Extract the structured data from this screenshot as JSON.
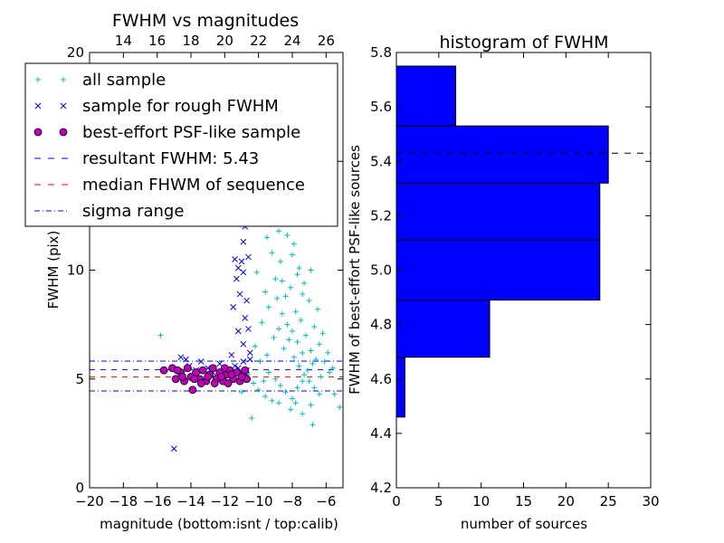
{
  "chart_data": [
    {
      "type": "scatter",
      "title": "FWHM vs magnitudes",
      "xlabel": "magnitude (bottom:isnt / top:calib)",
      "ylabel": "FWHM (pix)",
      "xlim": [
        -20,
        -5
      ],
      "ylim": [
        0,
        20
      ],
      "xticks": [
        -20,
        -18,
        -16,
        -14,
        -12,
        -10,
        -8,
        -6
      ],
      "xtick_labels": [
        "−20",
        "−18",
        "−16",
        "−14",
        "−12",
        "−10",
        "−8",
        "−6"
      ],
      "yticks": [
        0,
        5,
        10,
        15,
        20
      ],
      "ytick_labels": [
        "0",
        "5",
        "10",
        "15",
        "20"
      ],
      "top_xticks": [
        14,
        16,
        18,
        20,
        22,
        24,
        26
      ],
      "top_xtick_offset": 32,
      "legend_position": "top-left",
      "legend": [
        {
          "label": "all sample",
          "marker": "+",
          "color": "#00bfbf"
        },
        {
          "label": "sample for rough FWHM",
          "marker": "x",
          "color": "#0000ff"
        },
        {
          "label": "best-effort PSF-like sample",
          "marker": "o",
          "color": "#bf00bf"
        },
        {
          "label": "resultant FWHM: 5.43",
          "line": "dashed",
          "color": "#0000ff"
        },
        {
          "label": "median FHWM of sequence",
          "line": "dashed",
          "color": "#ff0000"
        },
        {
          "label": "sigma range",
          "line": "dashdot",
          "color": "#0000ff"
        }
      ],
      "lines": {
        "resultant_fwhm": 5.43,
        "median_fwhm": 5.1,
        "sigma_range": [
          4.45,
          5.82
        ]
      },
      "series": [
        {
          "name": "all sample",
          "marker": "+",
          "color": "#00bfbf",
          "points": [
            [
              -15.8,
              7.0
            ],
            [
              -10.4,
              3.2
            ],
            [
              -5.5,
              4.3
            ],
            [
              -5.2,
              3.7
            ],
            [
              -6.8,
              2.9
            ],
            [
              -7.4,
              3.4
            ],
            [
              -8.6,
              15.1
            ],
            [
              -8.3,
              17.5
            ],
            [
              -7.9,
              18.9
            ],
            [
              -8.2,
              19.4
            ],
            [
              -9.7,
              13.2
            ],
            [
              -9.3,
              12.1
            ],
            [
              -9.1,
              15.0
            ],
            [
              -8.9,
              14.2
            ],
            [
              -9.5,
              11.5
            ],
            [
              -10.1,
              9.9
            ],
            [
              -9.6,
              9.0
            ],
            [
              -8.8,
              11.8
            ],
            [
              -8.5,
              12.6
            ],
            [
              -8.1,
              13.0
            ],
            [
              -7.9,
              11.2
            ],
            [
              -7.6,
              10.1
            ],
            [
              -7.3,
              9.4
            ],
            [
              -7.0,
              8.6
            ],
            [
              -6.7,
              7.4
            ],
            [
              -6.4,
              6.6
            ],
            [
              -6.1,
              5.8
            ],
            [
              -5.8,
              5.3
            ],
            [
              -9.8,
              7.6
            ],
            [
              -9.4,
              8.3
            ],
            [
              -9.0,
              9.6
            ],
            [
              -8.7,
              10.4
            ],
            [
              -8.4,
              8.8
            ],
            [
              -8.1,
              9.2
            ],
            [
              -7.8,
              8.1
            ],
            [
              -7.5,
              7.7
            ],
            [
              -7.2,
              7.0
            ],
            [
              -6.9,
              6.3
            ],
            [
              -6.6,
              5.9
            ],
            [
              -6.3,
              5.1
            ],
            [
              -10.2,
              6.5
            ],
            [
              -9.9,
              5.8
            ],
            [
              -9.5,
              6.1
            ],
            [
              -9.1,
              6.9
            ],
            [
              -8.8,
              7.3
            ],
            [
              -8.5,
              6.4
            ],
            [
              -8.2,
              6.8
            ],
            [
              -7.9,
              6.0
            ],
            [
              -7.6,
              5.6
            ],
            [
              -7.3,
              5.2
            ],
            [
              -7.0,
              4.9
            ],
            [
              -6.7,
              4.6
            ],
            [
              -6.4,
              4.3
            ],
            [
              -10.6,
              5.2
            ],
            [
              -10.3,
              4.8
            ],
            [
              -10.0,
              4.5
            ],
            [
              -9.7,
              4.9
            ],
            [
              -9.4,
              5.3
            ],
            [
              -9.0,
              5.0
            ],
            [
              -8.7,
              4.7
            ],
            [
              -8.4,
              4.4
            ],
            [
              -8.0,
              4.1
            ],
            [
              -7.7,
              4.6
            ],
            [
              -7.4,
              4.9
            ],
            [
              -7.1,
              5.4
            ],
            [
              -6.8,
              5.7
            ],
            [
              -8.6,
              8.0
            ],
            [
              -8.3,
              7.5
            ],
            [
              -8.0,
              7.2
            ],
            [
              -7.7,
              6.7
            ],
            [
              -7.4,
              6.2
            ],
            [
              -8.9,
              8.7
            ],
            [
              -9.2,
              10.8
            ],
            [
              -8.0,
              10.7
            ],
            [
              -7.7,
              9.8
            ],
            [
              -7.4,
              8.9
            ],
            [
              -8.3,
              11.6
            ],
            [
              -8.6,
              9.5
            ],
            [
              -9.8,
              12.6
            ],
            [
              -9.4,
              14.6
            ],
            [
              -8.7,
              16.2
            ],
            [
              -7.6,
              14.0
            ],
            [
              -7.2,
              12.2
            ],
            [
              -6.9,
              10.0
            ],
            [
              -6.5,
              8.2
            ],
            [
              -6.2,
              7.1
            ],
            [
              -5.9,
              6.2
            ],
            [
              -5.6,
              5.5
            ],
            [
              -11.0,
              4.4
            ],
            [
              -10.8,
              5.0
            ],
            [
              -9.6,
              4.2
            ],
            [
              -9.2,
              4.0
            ],
            [
              -8.8,
              3.9
            ],
            [
              -8.1,
              3.6
            ],
            [
              -7.8,
              3.9
            ],
            [
              -6.9,
              3.8
            ]
          ]
        },
        {
          "name": "sample for rough FWHM",
          "marker": "x",
          "color": "#0000ff",
          "points": [
            [
              -15.0,
              1.8
            ],
            [
              -14.6,
              6.0
            ],
            [
              -14.3,
              5.9
            ],
            [
              -14.1,
              5.6
            ],
            [
              -13.7,
              5.4
            ],
            [
              -13.4,
              5.8
            ],
            [
              -13.0,
              5.5
            ],
            [
              -12.7,
              5.3
            ],
            [
              -12.3,
              5.7
            ],
            [
              -12.0,
              5.4
            ],
            [
              -11.7,
              5.2
            ],
            [
              -11.4,
              5.6
            ],
            [
              -11.2,
              5.5
            ],
            [
              -10.9,
              5.8
            ],
            [
              -10.7,
              5.4
            ],
            [
              -10.5,
              5.9
            ],
            [
              -10.9,
              6.6
            ],
            [
              -11.2,
              7.2
            ],
            [
              -10.8,
              7.8
            ],
            [
              -11.5,
              8.3
            ],
            [
              -11.1,
              8.9
            ],
            [
              -10.7,
              8.6
            ],
            [
              -11.3,
              9.6
            ],
            [
              -10.9,
              9.9
            ],
            [
              -11.0,
              10.4
            ],
            [
              -11.4,
              10.5
            ],
            [
              -10.6,
              10.6
            ],
            [
              -10.9,
              11.3
            ],
            [
              -10.8,
              12.0
            ],
            [
              -10.5,
              12.8
            ],
            [
              -10.7,
              13.5
            ],
            [
              -10.4,
              14.0
            ],
            [
              -11.2,
              10.1
            ],
            [
              -10.6,
              7.3
            ],
            [
              -10.5,
              6.2
            ],
            [
              -11.6,
              6.1
            ]
          ]
        },
        {
          "name": "best-effort PSF-like sample",
          "marker": "o",
          "color": "#bf00bf",
          "points": [
            [
              -15.6,
              5.4
            ],
            [
              -15.1,
              5.5
            ],
            [
              -14.9,
              5.0
            ],
            [
              -14.6,
              5.3
            ],
            [
              -14.4,
              4.9
            ],
            [
              -14.2,
              5.5
            ],
            [
              -14.0,
              5.1
            ],
            [
              -13.9,
              4.5
            ],
            [
              -13.7,
              5.3
            ],
            [
              -13.5,
              5.0
            ],
            [
              -13.3,
              5.4
            ],
            [
              -13.1,
              4.9
            ],
            [
              -12.9,
              5.2
            ],
            [
              -12.7,
              5.5
            ],
            [
              -12.5,
              5.0
            ],
            [
              -12.3,
              5.3
            ],
            [
              -12.1,
              4.9
            ],
            [
              -11.9,
              5.2
            ],
            [
              -11.7,
              5.4
            ],
            [
              -11.5,
              5.0
            ],
            [
              -11.3,
              5.3
            ],
            [
              -11.1,
              4.9
            ],
            [
              -10.9,
              5.2
            ],
            [
              -10.7,
              5.0
            ],
            [
              -14.5,
              5.1
            ],
            [
              -13.8,
              5.0
            ],
            [
              -13.0,
              5.1
            ],
            [
              -12.2,
              5.1
            ],
            [
              -11.6,
              5.2
            ],
            [
              -11.0,
              5.1
            ],
            [
              -14.8,
              5.4
            ],
            [
              -12.6,
              4.8
            ],
            [
              -11.8,
              4.8
            ],
            [
              -13.4,
              4.8
            ],
            [
              -10.8,
              5.4
            ],
            [
              -12.0,
              5.5
            ]
          ]
        }
      ]
    },
    {
      "type": "bar",
      "orientation": "horizontal",
      "title": "histogram of FWHM",
      "xlabel": "number of sources",
      "ylabel": "FWHM of best-effort PSF-like sources",
      "xlim": [
        0,
        30
      ],
      "ylim": [
        4.2,
        5.8
      ],
      "xticks": [
        0,
        5,
        10,
        15,
        20,
        25,
        30
      ],
      "yticks": [
        4.2,
        4.4,
        4.6,
        4.8,
        5.0,
        5.2,
        5.4,
        5.6,
        5.8
      ],
      "ytick_labels": [
        "4.2",
        "4.4",
        "4.6",
        "4.8",
        "5.0",
        "5.2",
        "5.4",
        "5.6",
        "5.8"
      ],
      "bar_color": "#0000ff",
      "bins": [
        {
          "from": 4.46,
          "to": 4.68,
          "count": 1
        },
        {
          "from": 4.68,
          "to": 4.89,
          "count": 11
        },
        {
          "from": 4.89,
          "to": 5.11,
          "count": 24
        },
        {
          "from": 5.11,
          "to": 5.32,
          "count": 24
        },
        {
          "from": 5.32,
          "to": 5.53,
          "count": 25
        },
        {
          "from": 5.53,
          "to": 5.75,
          "count": 7
        }
      ],
      "reference_line": 5.43
    }
  ]
}
